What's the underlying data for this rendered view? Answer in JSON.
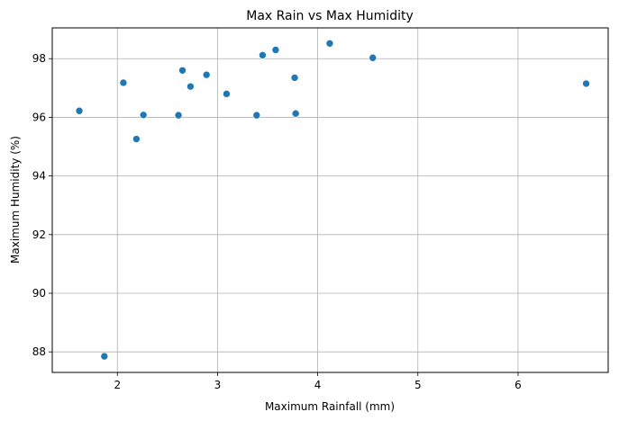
{
  "chart_data": {
    "type": "scatter",
    "title": "Max Rain vs Max Humidity",
    "xlabel": "Maximum Rainfall (mm)",
    "ylabel": "Maximum Humidity (%)",
    "xlim": [
      1.35,
      6.9
    ],
    "ylim": [
      87.3,
      99.05
    ],
    "xticks": [
      2,
      3,
      4,
      5,
      6
    ],
    "yticks": [
      88,
      90,
      92,
      94,
      96,
      98
    ],
    "grid": true,
    "legend": "none",
    "marker_color": "#1f77b4",
    "points": [
      {
        "x": 1.62,
        "y": 96.22
      },
      {
        "x": 1.87,
        "y": 87.85
      },
      {
        "x": 2.06,
        "y": 97.18
      },
      {
        "x": 2.19,
        "y": 95.26
      },
      {
        "x": 2.26,
        "y": 96.08
      },
      {
        "x": 2.61,
        "y": 96.07
      },
      {
        "x": 2.65,
        "y": 97.6
      },
      {
        "x": 2.73,
        "y": 97.05
      },
      {
        "x": 2.89,
        "y": 97.45
      },
      {
        "x": 3.09,
        "y": 96.8
      },
      {
        "x": 3.39,
        "y": 96.07
      },
      {
        "x": 3.45,
        "y": 98.12
      },
      {
        "x": 3.58,
        "y": 98.3
      },
      {
        "x": 3.77,
        "y": 97.35
      },
      {
        "x": 3.78,
        "y": 96.13
      },
      {
        "x": 4.12,
        "y": 98.52
      },
      {
        "x": 4.55,
        "y": 98.03
      },
      {
        "x": 6.68,
        "y": 97.15
      }
    ]
  }
}
